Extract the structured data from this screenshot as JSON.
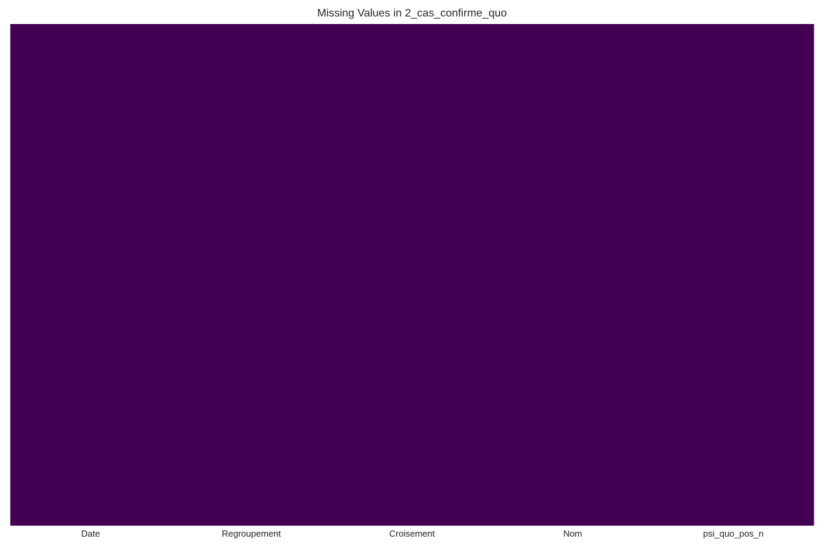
{
  "chart_data": {
    "type": "heatmap",
    "title": "Missing Values in 2_cas_confirme_quo",
    "columns": [
      "Date",
      "Regroupement",
      "Croisement",
      "Nom",
      "psi_quo_pos_n"
    ],
    "missing": [
      false,
      false,
      false,
      false,
      false
    ],
    "colorscale": "viridis",
    "colors": {
      "present": "#440154",
      "missing": "#fde725"
    },
    "xlabel": "",
    "ylabel": "",
    "grid": false,
    "legend": "none"
  }
}
